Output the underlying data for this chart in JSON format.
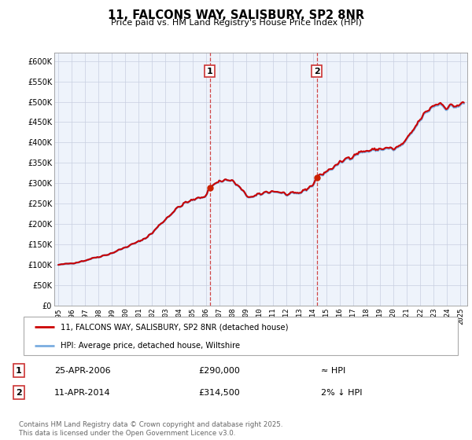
{
  "title": "11, FALCONS WAY, SALISBURY, SP2 8NR",
  "subtitle": "Price paid vs. HM Land Registry's House Price Index (HPI)",
  "ylabel_ticks": [
    "£0",
    "£50K",
    "£100K",
    "£150K",
    "£200K",
    "£250K",
    "£300K",
    "£350K",
    "£400K",
    "£450K",
    "£500K",
    "£550K",
    "£600K"
  ],
  "ylim": [
    0,
    620000
  ],
  "xlim_start": 1994.7,
  "xlim_end": 2025.5,
  "purchase_points": [
    {
      "year": 2006.3,
      "price": 290000,
      "label": "1",
      "date": "25-APR-2006",
      "amount": "£290,000",
      "hpi_note": "≈ HPI"
    },
    {
      "year": 2014.28,
      "price": 314500,
      "label": "2",
      "date": "11-APR-2014",
      "amount": "£314,500",
      "hpi_note": "2% ↓ HPI"
    }
  ],
  "line_color_red": "#cc0000",
  "line_color_blue": "#7aade0",
  "fill_color": "#d8e8f8",
  "bg_color": "#eef3fb",
  "grid_color": "#c8cfe0",
  "dashed_color": "#cc3333",
  "legend_label_red": "11, FALCONS WAY, SALISBURY, SP2 8NR (detached house)",
  "legend_label_blue": "HPI: Average price, detached house, Wiltshire",
  "footer": "Contains HM Land Registry data © Crown copyright and database right 2025.\nThis data is licensed under the Open Government Licence v3.0.",
  "xticks": [
    1995,
    1996,
    1997,
    1998,
    1999,
    2000,
    2001,
    2002,
    2003,
    2004,
    2005,
    2006,
    2007,
    2008,
    2009,
    2010,
    2011,
    2012,
    2013,
    2014,
    2015,
    2016,
    2017,
    2018,
    2019,
    2020,
    2021,
    2022,
    2023,
    2024,
    2025
  ],
  "yticks": [
    0,
    50000,
    100000,
    150000,
    200000,
    250000,
    300000,
    350000,
    400000,
    450000,
    500000,
    550000,
    600000
  ]
}
